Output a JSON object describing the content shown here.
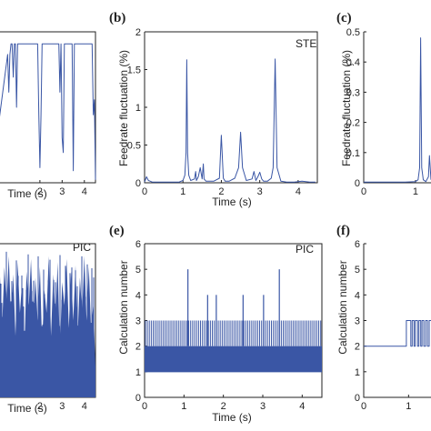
{
  "figure": {
    "panels": [
      {
        "id": "a",
        "label": "",
        "tag": ""
      },
      {
        "id": "b",
        "label": "(b)",
        "tag": "STE"
      },
      {
        "id": "c",
        "label": "(c)",
        "tag": ""
      },
      {
        "id": "d",
        "label": "",
        "tag": "PIC"
      },
      {
        "id": "e",
        "label": "(e)",
        "tag": "PIC"
      },
      {
        "id": "f",
        "label": "(f)",
        "tag": ""
      }
    ]
  },
  "chart_data": [
    {
      "panel": "a",
      "type": "line",
      "title": "",
      "xlabel": "Time (s)",
      "ylabel": "",
      "xlim": [
        0,
        4.5
      ],
      "xticks": [
        "2",
        "3",
        "4"
      ],
      "yticks": [],
      "ylim": [
        0,
        1
      ],
      "x": [
        0,
        0.15,
        0.55,
        0.6,
        0.65,
        0.7,
        0.75,
        0.8,
        0.85,
        0.9,
        0.95,
        1.0,
        1.05,
        1.1,
        1.15,
        1.2,
        1.25,
        1.3,
        1.35,
        1.4,
        1.45,
        1.5,
        1.55,
        1.6,
        1.65,
        1.7,
        1.75,
        1.8,
        1.85,
        1.9,
        1.95,
        2.0,
        2.05,
        2.1,
        2.15,
        2.2,
        2.25,
        2.3,
        2.35,
        2.4,
        2.45,
        2.5,
        2.55,
        2.6,
        2.65,
        2.7,
        2.75,
        2.8,
        2.85,
        2.9,
        2.95,
        3.0,
        3.05,
        3.1,
        3.15,
        3.2,
        3.25,
        3.3,
        3.35,
        3.4,
        3.45,
        3.5,
        3.55,
        3.6,
        3.65,
        3.7,
        3.75,
        3.8,
        3.85,
        3.9,
        3.95,
        4.0,
        4.05,
        4.1,
        4.15,
        4.2,
        4.25,
        4.3,
        4.35,
        4.4,
        4.45,
        4.5
      ],
      "y": [
        0.1,
        0.4,
        0.85,
        0.6,
        0.85,
        0.92,
        0.92,
        0.7,
        0.92,
        0.92,
        0.5,
        0.92,
        0.92,
        0.92,
        0.92,
        0.92,
        0.92,
        0.92,
        0.92,
        0.92,
        0.92,
        0.92,
        0.92,
        0.92,
        0.92,
        0.92,
        0.92,
        0.92,
        0.92,
        0.92,
        0.45,
        0.1,
        0.45,
        0.92,
        0.92,
        0.92,
        0.92,
        0.92,
        0.92,
        0.92,
        0.92,
        0.92,
        0.92,
        0.92,
        0.92,
        0.92,
        0.92,
        0.92,
        0.92,
        0.6,
        0.92,
        0.3,
        0.2,
        0.92,
        0.92,
        0.92,
        0.92,
        0.92,
        0.92,
        0.92,
        0.92,
        0.08,
        0.92,
        0.92,
        0.92,
        0.92,
        0.92,
        0.92,
        0.92,
        0.92,
        0.92,
        0.92,
        0.92,
        0.92,
        0.92,
        0.92,
        0.92,
        0.92,
        0.92,
        0.45,
        0.55,
        0.02
      ]
    },
    {
      "panel": "b",
      "type": "line",
      "title": "",
      "xlabel": "Time (s)",
      "ylabel": "Feedrate fluctuation (%)",
      "xlim": [
        0,
        4.5
      ],
      "ylim": [
        0,
        2
      ],
      "xticks": [
        "0",
        "1",
        "2",
        "3",
        "4"
      ],
      "yticks": [
        "0",
        "0.5",
        "1",
        "1.5",
        "2"
      ],
      "x": [
        0,
        0.05,
        0.1,
        0.15,
        0.2,
        0.3,
        0.5,
        0.7,
        0.9,
        1.0,
        1.05,
        1.08,
        1.1,
        1.12,
        1.15,
        1.2,
        1.3,
        1.33,
        1.35,
        1.4,
        1.45,
        1.5,
        1.53,
        1.55,
        1.6,
        1.65,
        1.8,
        1.95,
        2.0,
        2.05,
        2.1,
        2.2,
        2.35,
        2.45,
        2.5,
        2.55,
        2.65,
        2.8,
        2.85,
        2.9,
        2.95,
        3.0,
        3.05,
        3.1,
        3.2,
        3.3,
        3.35,
        3.4,
        3.45,
        3.55,
        3.7,
        3.9,
        4.1,
        4.3,
        4.45
      ],
      "y": [
        0.01,
        0.08,
        0.03,
        0.02,
        0.01,
        0.01,
        0.01,
        0.01,
        0.01,
        0.03,
        0.1,
        0.4,
        1.63,
        0.4,
        0.1,
        0.03,
        0.05,
        0.15,
        0.03,
        0.08,
        0.2,
        0.05,
        0.25,
        0.05,
        0.02,
        0.02,
        0.02,
        0.06,
        0.63,
        0.06,
        0.02,
        0.02,
        0.06,
        0.2,
        0.67,
        0.2,
        0.03,
        0.05,
        0.15,
        0.03,
        0.08,
        0.14,
        0.05,
        0.02,
        0.02,
        0.06,
        0.2,
        1.64,
        0.2,
        0.02,
        0.01,
        0.01,
        0.02,
        0.01,
        0.01
      ]
    },
    {
      "panel": "c",
      "type": "line",
      "title": "",
      "xlabel": "",
      "ylabel": "Feedrate fluctuation (%)",
      "xlim": [
        0,
        1.3
      ],
      "ylim": [
        0,
        0.5
      ],
      "xticks": [
        "0",
        "1"
      ],
      "yticks": [
        "0",
        "0.1",
        "0.2",
        "0.3",
        "0.4",
        "0.5"
      ],
      "x": [
        0,
        0.2,
        0.4,
        0.6,
        0.8,
        1.0,
        1.05,
        1.08,
        1.1,
        1.12,
        1.15,
        1.2,
        1.25,
        1.27,
        1.3
      ],
      "y": [
        0.002,
        0.002,
        0.002,
        0.002,
        0.002,
        0.004,
        0.01,
        0.05,
        0.48,
        0.05,
        0.01,
        0.004,
        0.02,
        0.09,
        0.01
      ]
    },
    {
      "panel": "d",
      "type": "area",
      "title": "",
      "xlabel": "Time (s)",
      "ylabel": "",
      "xlim": [
        0,
        4.5
      ],
      "ylim": [
        0,
        1
      ],
      "xticks": [
        "2",
        "3",
        "4"
      ],
      "yticks": [],
      "x": [
        0,
        0.1,
        0.2,
        0.3,
        0.4,
        0.5,
        0.6,
        0.7,
        0.8,
        0.9,
        1.0,
        1.1,
        1.2,
        1.3,
        1.4,
        1.5,
        1.6,
        1.7,
        1.8,
        1.9,
        2.0,
        2.1,
        2.2,
        2.3,
        2.4,
        2.5,
        2.6,
        2.7,
        2.8,
        2.9,
        3.0,
        3.1,
        3.2,
        3.3,
        3.4,
        3.5,
        3.6,
        3.7,
        3.8,
        3.9,
        4.0,
        4.1,
        4.2,
        4.3,
        4.4,
        4.5
      ],
      "y": [
        0.35,
        0.55,
        0.8,
        0.45,
        0.85,
        0.6,
        0.92,
        0.5,
        0.8,
        0.4,
        0.88,
        0.55,
        0.75,
        0.3,
        0.82,
        0.6,
        0.9,
        0.45,
        0.78,
        0.5,
        0.85,
        0.35,
        0.7,
        0.55,
        0.92,
        0.4,
        0.8,
        0.5,
        0.88,
        0.3,
        0.75,
        0.6,
        0.9,
        0.45,
        0.82,
        0.5,
        0.86,
        0.4,
        0.78,
        0.55,
        0.92,
        0.5,
        0.85,
        0.45,
        0.6,
        0.2
      ]
    },
    {
      "panel": "e",
      "type": "line",
      "title": "",
      "xlabel": "Time (s)",
      "ylabel": "Calculation number",
      "xlim": [
        0,
        4.5
      ],
      "ylim": [
        0,
        6
      ],
      "xticks": [
        "0",
        "1",
        "2",
        "3",
        "4"
      ],
      "yticks": [
        "0",
        "1",
        "2",
        "3",
        "4",
        "5",
        "6"
      ],
      "peaks_x": [
        1.1,
        1.6,
        1.82,
        2.5,
        3.02,
        3.42
      ],
      "peaks_y": [
        5,
        4,
        4,
        4,
        4,
        5
      ]
    },
    {
      "panel": "f",
      "type": "line",
      "title": "",
      "xlabel": "Time (s)",
      "ylabel": "Calculation number",
      "xlim": [
        0,
        1.5
      ],
      "ylim": [
        0,
        6
      ],
      "xticks": [
        "0",
        "1"
      ],
      "yticks": [
        "0",
        "1",
        "2",
        "3",
        "4",
        "5",
        "6"
      ],
      "x": [
        0,
        0.95,
        0.95,
        1.05,
        1.05,
        1.08,
        1.08,
        1.12,
        1.12,
        1.15,
        1.15,
        1.2,
        1.2,
        1.23,
        1.23,
        1.27,
        1.27,
        1.3,
        1.3,
        1.34,
        1.34,
        1.38,
        1.38,
        1.42,
        1.42,
        1.46,
        1.46,
        1.5
      ],
      "y": [
        2,
        2,
        3,
        3,
        2,
        2,
        3,
        3,
        2,
        2,
        3,
        3,
        2,
        2,
        3,
        3,
        2,
        2,
        3,
        3,
        2,
        2,
        3,
        3,
        2,
        2,
        3,
        3
      ]
    }
  ]
}
